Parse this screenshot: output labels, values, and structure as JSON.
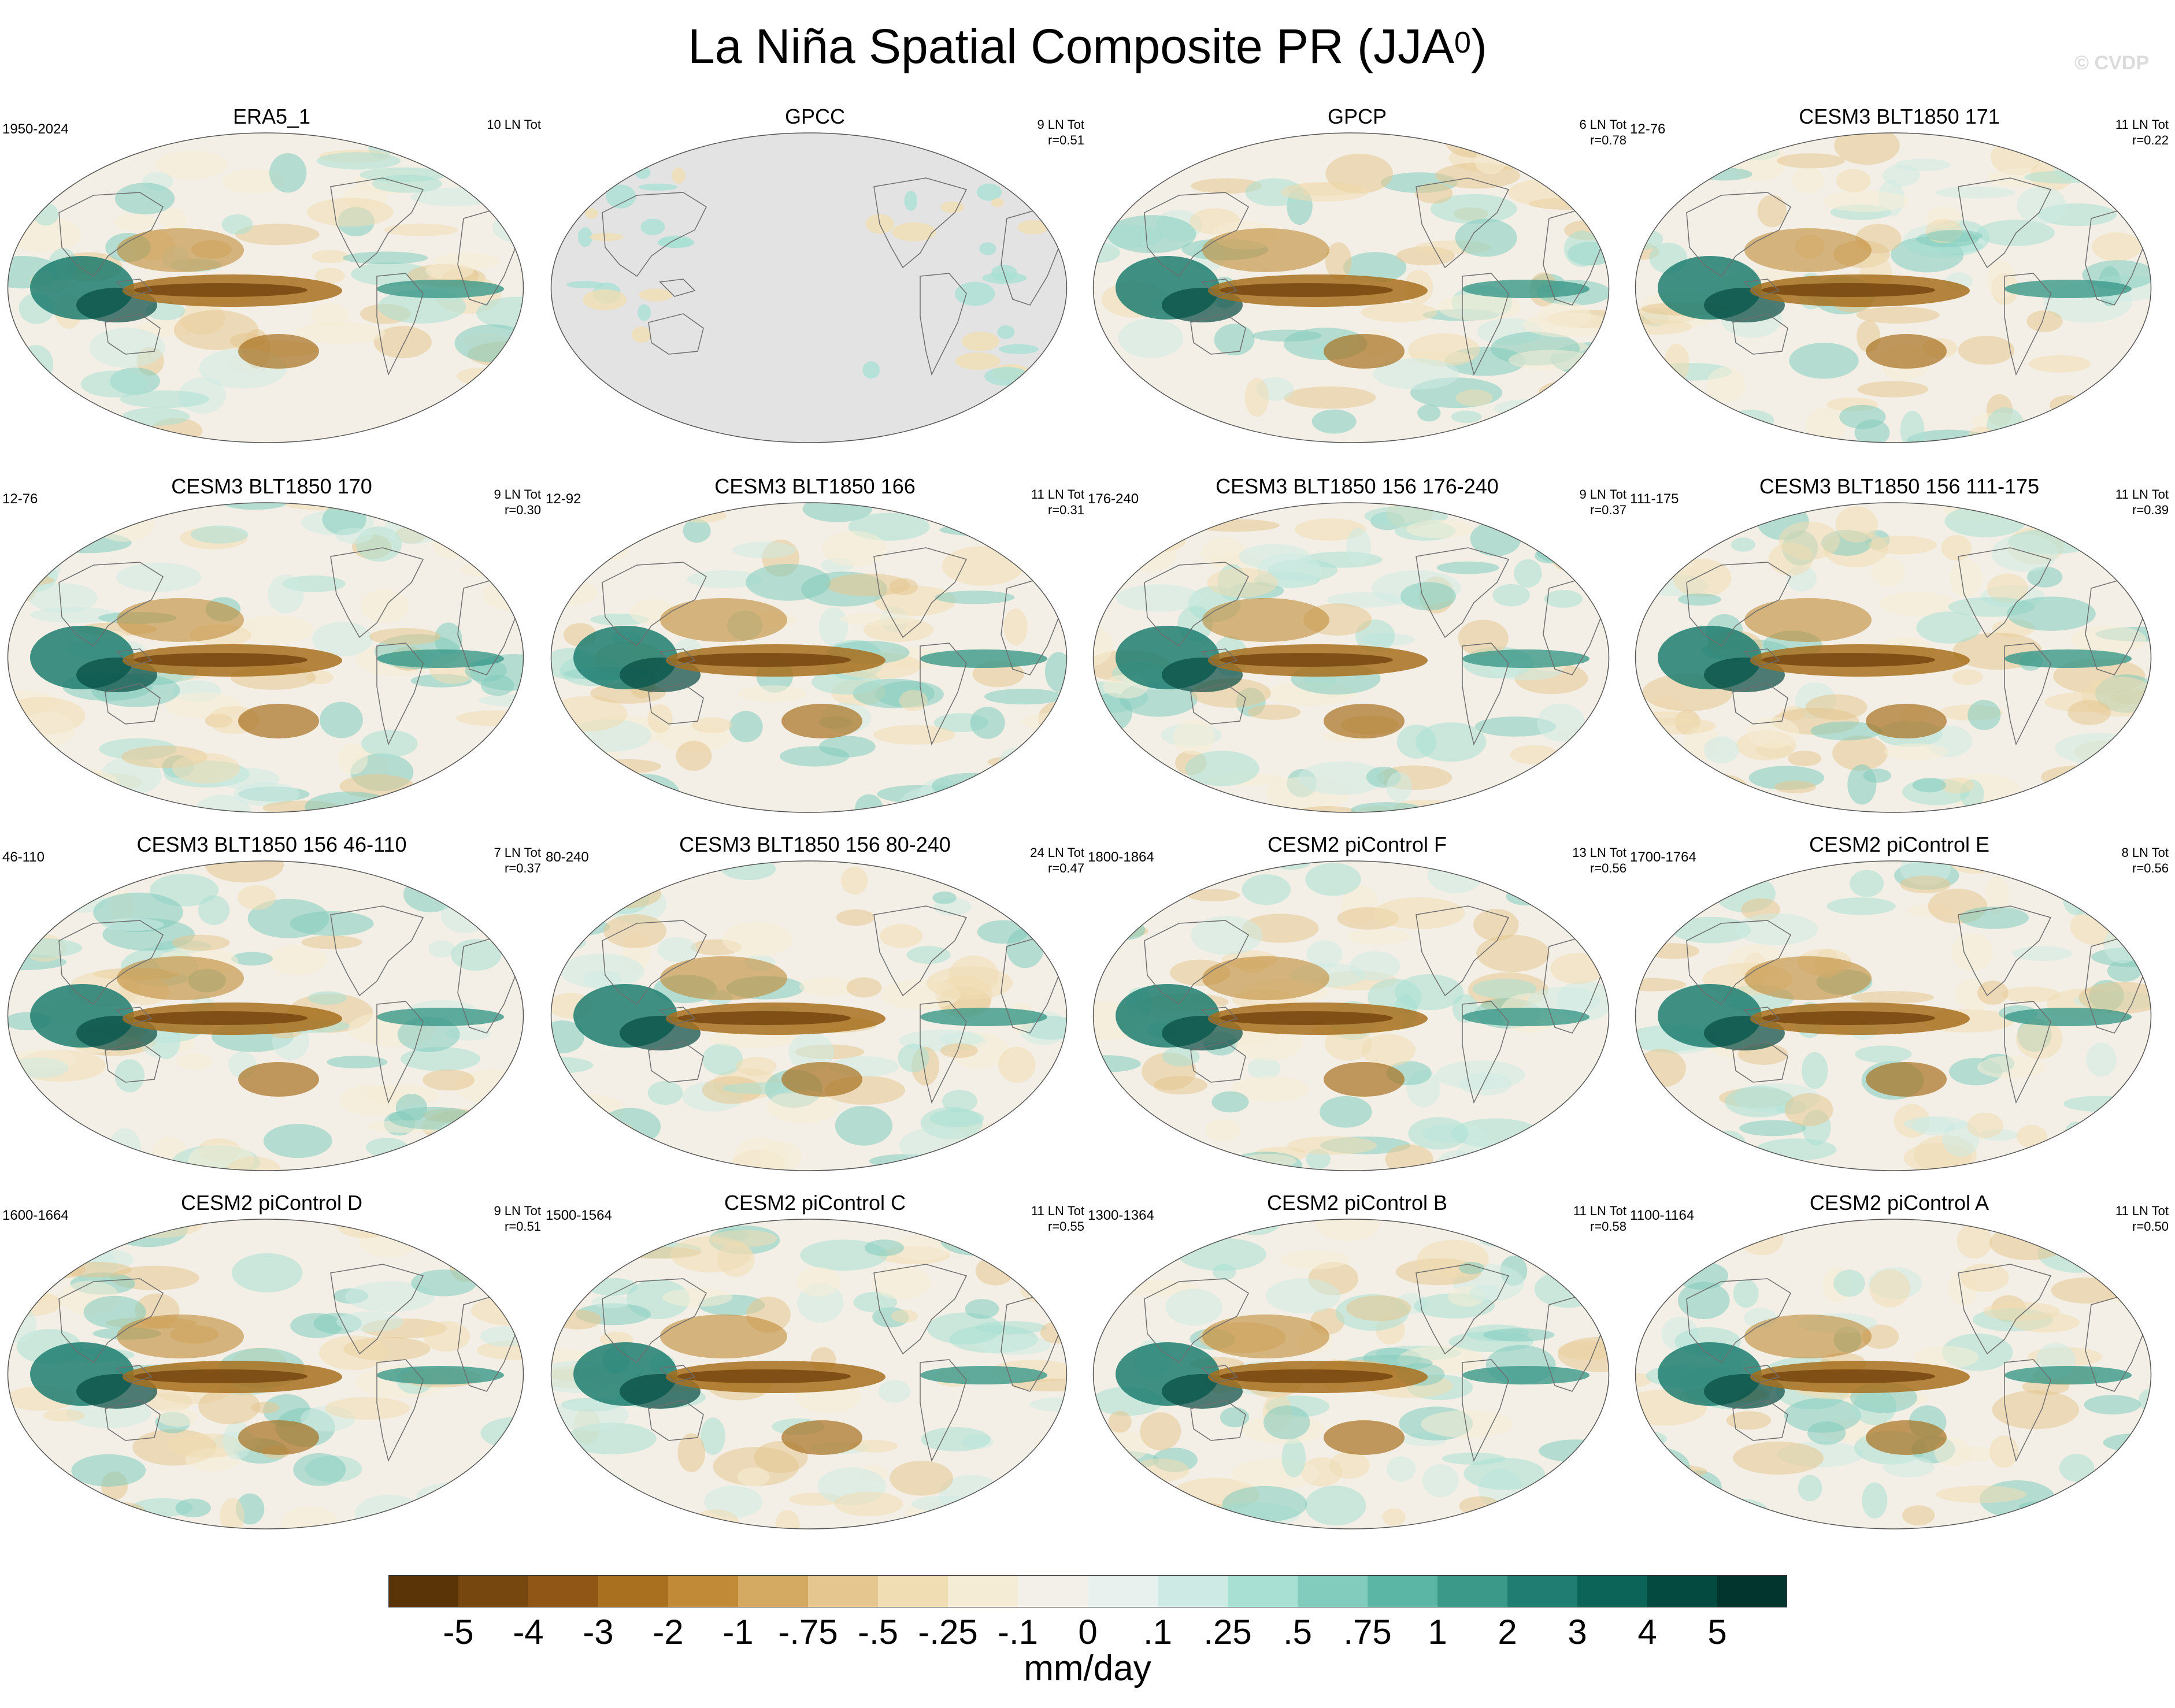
{
  "title": {
    "main": "La Niña Spatial Composite PR (JJA",
    "sup": "0",
    "close": ")"
  },
  "watermark": "© CVDP",
  "panels": [
    {
      "title": "ERA5_1",
      "period": "1950-2024",
      "count": "10 LN Tot",
      "r": ""
    },
    {
      "title": "GPCC",
      "period": "",
      "count": "9 LN Tot",
      "r": "r=0.51"
    },
    {
      "title": "GPCP",
      "period": "",
      "count": "6 LN Tot",
      "r": "r=0.78"
    },
    {
      "title": "CESM3 BLT1850 171",
      "period": "12-76",
      "count": "11 LN Tot",
      "r": "r=0.22"
    },
    {
      "title": "CESM3 BLT1850 170",
      "period": "12-76",
      "count": "9 LN Tot",
      "r": "r=0.30"
    },
    {
      "title": "CESM3 BLT1850 166",
      "period": "12-92",
      "count": "11 LN Tot",
      "r": "r=0.31"
    },
    {
      "title": "CESM3 BLT1850 156 176-240",
      "period": "176-240",
      "count": "9 LN Tot",
      "r": "r=0.37"
    },
    {
      "title": "CESM3 BLT1850 156 111-175",
      "period": "111-175",
      "count": "11 LN Tot",
      "r": "r=0.39"
    },
    {
      "title": "CESM3 BLT1850 156 46-110",
      "period": "46-110",
      "count": "7 LN Tot",
      "r": "r=0.37"
    },
    {
      "title": "CESM3 BLT1850 156 80-240",
      "period": "80-240",
      "count": "24 LN Tot",
      "r": "r=0.47"
    },
    {
      "title": "CESM2 piControl F",
      "period": "1800-1864",
      "count": "13 LN Tot",
      "r": "r=0.56"
    },
    {
      "title": "CESM2 piControl E",
      "period": "1700-1764",
      "count": "8 LN Tot",
      "r": "r=0.56"
    },
    {
      "title": "CESM2 piControl D",
      "period": "1600-1664",
      "count": "9 LN Tot",
      "r": "r=0.51"
    },
    {
      "title": "CESM2 piControl C",
      "period": "1500-1564",
      "count": "11 LN Tot",
      "r": "r=0.55"
    },
    {
      "title": "CESM2 piControl B",
      "period": "1300-1364",
      "count": "11 LN Tot",
      "r": "r=0.58"
    },
    {
      "title": "CESM2 piControl A",
      "period": "1100-1164",
      "count": "11 LN Tot",
      "r": "r=0.50"
    }
  ],
  "colorbar": {
    "units": "mm/day",
    "labels": [
      "-5",
      "-4",
      "-3",
      "-2",
      "-1",
      "-.75",
      "-.5",
      "-.25",
      "-.1",
      "0",
      ".1",
      ".25",
      ".5",
      ".75",
      "1",
      "2",
      "3",
      "4",
      "5"
    ],
    "colors": [
      "#5a3307",
      "#774710",
      "#8f5616",
      "#a8701f",
      "#c08a36",
      "#d4aa63",
      "#e5c68f",
      "#f0ddb3",
      "#f5ecd6",
      "#f3f0ea",
      "#e9f1ef",
      "#cdebe4",
      "#a9e0d4",
      "#82ccbd",
      "#5cb6a5",
      "#3b998a",
      "#1f7e71",
      "#0c6357",
      "#054a41",
      "#02352d"
    ]
  }
}
